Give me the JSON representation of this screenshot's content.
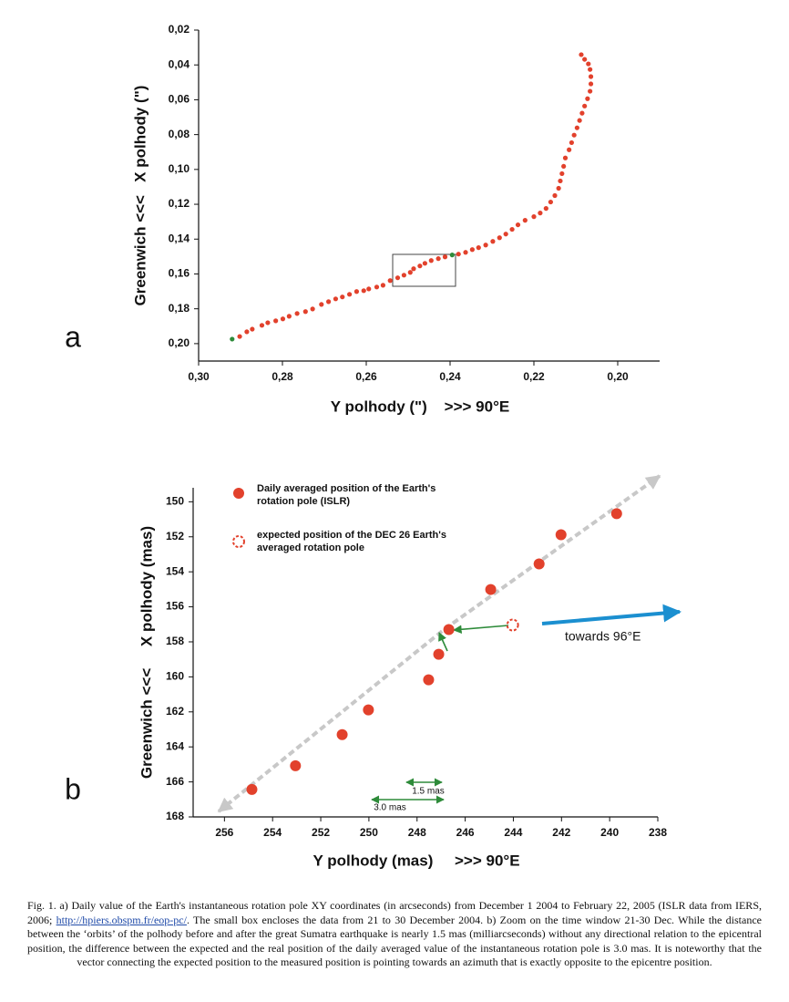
{
  "chart_data": [
    {
      "type": "scatter",
      "panel": "a",
      "x_label": "Y polhody (\")    >>> 90°E",
      "y_label": "Greenwich <<<   X polhody (\")",
      "xlim": [
        0.3,
        0.19
      ],
      "ylim": [
        0.21,
        0.02
      ],
      "xticks": [
        {
          "value": 0.3,
          "label": "0,30"
        },
        {
          "value": 0.28,
          "label": "0,28"
        },
        {
          "value": 0.26,
          "label": "0,26"
        },
        {
          "value": 0.24,
          "label": "0,24"
        },
        {
          "value": 0.22,
          "label": "0,22"
        },
        {
          "value": 0.2,
          "label": "0,20"
        }
      ],
      "yticks": [
        {
          "value": 0.02,
          "label": "0,02"
        },
        {
          "value": 0.04,
          "label": "0,04"
        },
        {
          "value": 0.06,
          "label": "0,06"
        },
        {
          "value": 0.08,
          "label": "0,08"
        },
        {
          "value": 0.1,
          "label": "0,10"
        },
        {
          "value": 0.12,
          "label": "0,12"
        },
        {
          "value": 0.14,
          "label": "0,14"
        },
        {
          "value": 0.16,
          "label": "0,16"
        },
        {
          "value": 0.18,
          "label": "0,18"
        },
        {
          "value": 0.2,
          "label": "0,20"
        }
      ],
      "series": [
        {
          "color": "#e2412c",
          "x": [
            0.2902,
            0.2885,
            0.2872,
            0.2849,
            0.2835,
            0.2816,
            0.2799,
            0.2784,
            0.2765,
            0.2745,
            0.2728,
            0.2707,
            0.269,
            0.2673,
            0.2657,
            0.264,
            0.2623,
            0.2606,
            0.2594,
            0.2575,
            0.256,
            0.2543,
            0.2525,
            0.251,
            0.2495,
            0.2487,
            0.2472,
            0.246,
            0.2445,
            0.2428,
            0.2412,
            0.238,
            0.2363,
            0.2347,
            0.2332,
            0.2315,
            0.2298,
            0.2282,
            0.2267,
            0.2252,
            0.2238,
            0.2221,
            0.22,
            0.2185,
            0.2171,
            0.216,
            0.215,
            0.2141,
            0.2137,
            0.2133,
            0.2129,
            0.2125,
            0.2116,
            0.211,
            0.2104,
            0.2097,
            0.2091,
            0.2085,
            0.2079,
            0.2072,
            0.2066,
            0.2064,
            0.2064,
            0.2066,
            0.207,
            0.2079,
            0.2087
          ],
          "values": [
            0.1959,
            0.1932,
            0.1917,
            0.1895,
            0.188,
            0.1869,
            0.1858,
            0.1843,
            0.1827,
            0.1816,
            0.1801,
            0.1775,
            0.1759,
            0.1743,
            0.1732,
            0.1717,
            0.1701,
            0.1696,
            0.1686,
            0.1675,
            0.1665,
            0.1638,
            0.1622,
            0.1607,
            0.1591,
            0.157,
            0.1554,
            0.1539,
            0.1523,
            0.1512,
            0.1502,
            0.1486,
            0.1476,
            0.146,
            0.1449,
            0.1434,
            0.1413,
            0.1392,
            0.1371,
            0.1344,
            0.1318,
            0.1292,
            0.1271,
            0.125,
            0.1224,
            0.1187,
            0.115,
            0.1108,
            0.1066,
            0.1024,
            0.0982,
            0.0934,
            0.0887,
            0.0846,
            0.0803,
            0.0761,
            0.0719,
            0.0677,
            0.0636,
            0.0594,
            0.0551,
            0.0509,
            0.0467,
            0.0426,
            0.0394,
            0.0368,
            0.0341
          ]
        },
        {
          "color": "#2e8b3a",
          "x": [
            0.292,
            0.2395
          ],
          "values": [
            0.1974,
            0.1491
          ]
        }
      ]
    },
    {
      "type": "scatter",
      "panel": "b",
      "x_label": "Y polhody (mas)     >>> 90°E",
      "y_label": "Greenwich <<<     X polhody (mas)",
      "xlim": [
        257.3,
        238
      ],
      "ylim": [
        168,
        149.2
      ],
      "xticks": [
        256,
        254,
        252,
        250,
        248,
        246,
        244,
        242,
        240,
        238
      ],
      "yticks": [
        150,
        152,
        154,
        156,
        158,
        160,
        162,
        164,
        166,
        168
      ],
      "series": [
        {
          "name": "Daily averaged position of the Earth's rotation pole (ISLR)",
          "color": "#e2412c",
          "marker": "filled",
          "x": [
            254.86,
            253.05,
            251.11,
            250.02,
            247.52,
            247.1,
            246.68,
            244.94,
            242.93,
            242.02,
            239.71
          ],
          "values": [
            166.43,
            165.08,
            163.3,
            161.89,
            160.17,
            158.71,
            157.3,
            155.01,
            153.55,
            151.88,
            150.68
          ]
        },
        {
          "name": "expected position of the DEC 26 Earth's averaged rotation pole",
          "color": "#e2412c",
          "marker": "open-dashed",
          "x": [
            244.03
          ],
          "values": [
            157.04
          ]
        }
      ],
      "annotations": [
        "towards 96°E",
        "1.5 mas",
        "3.0 mas"
      ]
    }
  ],
  "caption": [
    "Fig. 1. a) Daily value of the Earth's instantaneous rotation pole XY coordinates (in arcseconds) from December 1 2004 to February 22, 2005 (ISLR data from IERS, 2006; ",
    "http://hpiers.obspm.fr/eop-pc/",
    ". The small box encloses the data from 21 to 30 December 2004. b) Zoom on the time window 21-30 Dec. While the distance between the ‘orbits’ of the polhody before and after the great Sumatra earthquake is nearly 1.5 mas (milliarcseconds) without any directional relation to the epicentral position, the difference between the expected and the real position of the daily averaged value of the instantaneous rotation pole is 3.0 mas. It is noteworthy that the vector connecting the expected position to the measured position is pointing towards an azimuth that is exactly opposite to the epicentre position."
  ]
}
